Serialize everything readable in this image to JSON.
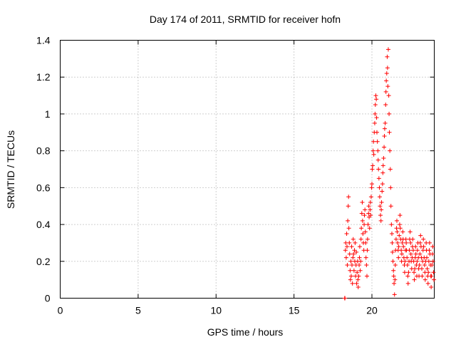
{
  "chart_data": {
    "type": "scatter",
    "title": "Day 174 of 2011, SRMTID for receiver hofn",
    "xlabel": "GPS time / hours",
    "ylabel": "SRMTID / TECUs",
    "xlim": [
      0,
      24
    ],
    "ylim": [
      0,
      1.4
    ],
    "xticks": [
      0,
      5,
      10,
      15,
      20
    ],
    "xtick_labels": [
      "0",
      "5",
      "10",
      "15",
      "20"
    ],
    "yticks": [
      0,
      0.2,
      0.4,
      0.6,
      0.8,
      1.0,
      1.2,
      1.4
    ],
    "ytick_labels": [
      "0",
      "0.2",
      "0.4",
      "0.6",
      "0.8",
      "1",
      "1.2",
      "1.4"
    ],
    "grid": true,
    "marker": "+",
    "color": "#ff0000",
    "series": [
      {
        "name": "SRMTID",
        "points": [
          [
            18.25,
            0.0
          ],
          [
            18.27,
            0.0
          ],
          [
            18.3,
            0.26
          ],
          [
            18.32,
            0.3
          ],
          [
            18.35,
            0.22
          ],
          [
            18.38,
            0.35
          ],
          [
            18.4,
            0.28
          ],
          [
            18.42,
            0.18
          ],
          [
            18.45,
            0.42
          ],
          [
            18.48,
            0.5
          ],
          [
            18.5,
            0.55
          ],
          [
            18.52,
            0.38
          ],
          [
            18.55,
            0.3
          ],
          [
            18.57,
            0.24
          ],
          [
            18.6,
            0.15
          ],
          [
            18.62,
            0.1
          ],
          [
            18.65,
            0.2
          ],
          [
            18.67,
            0.12
          ],
          [
            18.7,
            0.28
          ],
          [
            18.72,
            0.18
          ],
          [
            18.75,
            0.08
          ],
          [
            18.78,
            0.22
          ],
          [
            18.8,
            0.32
          ],
          [
            18.82,
            0.24
          ],
          [
            18.85,
            0.15
          ],
          [
            18.88,
            0.26
          ],
          [
            18.9,
            0.2
          ],
          [
            18.92,
            0.3
          ],
          [
            18.95,
            0.12
          ],
          [
            18.98,
            0.18
          ],
          [
            19.0,
            0.25
          ],
          [
            19.02,
            0.08
          ],
          [
            19.05,
            0.14
          ],
          [
            19.08,
            0.2
          ],
          [
            19.1,
            0.1
          ],
          [
            19.12,
            0.06
          ],
          [
            19.15,
            0.12
          ],
          [
            19.18,
            0.18
          ],
          [
            19.2,
            0.22
          ],
          [
            19.22,
            0.28
          ],
          [
            19.25,
            0.15
          ],
          [
            19.28,
            0.2
          ],
          [
            19.3,
            0.32
          ],
          [
            19.32,
            0.38
          ],
          [
            19.35,
            0.46
          ],
          [
            19.38,
            0.52
          ],
          [
            19.4,
            0.42
          ],
          [
            19.42,
            0.35
          ],
          [
            19.45,
            0.3
          ],
          [
            19.48,
            0.26
          ],
          [
            19.5,
            0.4
          ],
          [
            19.52,
            0.45
          ],
          [
            19.55,
            0.48
          ],
          [
            19.58,
            0.36
          ],
          [
            19.6,
            0.3
          ],
          [
            19.62,
            0.22
          ],
          [
            19.65,
            0.18
          ],
          [
            19.68,
            0.12
          ],
          [
            19.7,
            0.26
          ],
          [
            19.72,
            0.32
          ],
          [
            19.75,
            0.4
          ],
          [
            19.78,
            0.46
          ],
          [
            19.8,
            0.5
          ],
          [
            19.82,
            0.44
          ],
          [
            19.85,
            0.38
          ],
          [
            19.88,
            0.48
          ],
          [
            19.9,
            0.52
          ],
          [
            19.92,
            0.45
          ],
          [
            19.95,
            0.55
          ],
          [
            19.98,
            0.6
          ],
          [
            20.0,
            0.62
          ],
          [
            20.02,
            0.7
          ],
          [
            20.05,
            0.72
          ],
          [
            20.08,
            0.8
          ],
          [
            20.1,
            0.85
          ],
          [
            20.12,
            0.78
          ],
          [
            20.15,
            0.9
          ],
          [
            20.18,
            0.95
          ],
          [
            20.2,
            1.0
          ],
          [
            20.22,
            1.05
          ],
          [
            20.25,
            1.1
          ],
          [
            20.28,
            1.08
          ],
          [
            20.3,
            0.98
          ],
          [
            20.32,
            0.9
          ],
          [
            20.35,
            0.85
          ],
          [
            20.38,
            0.8
          ],
          [
            20.4,
            0.75
          ],
          [
            20.42,
            0.7
          ],
          [
            20.45,
            0.65
          ],
          [
            20.48,
            0.6
          ],
          [
            20.5,
            0.55
          ],
          [
            20.52,
            0.5
          ],
          [
            20.55,
            0.45
          ],
          [
            20.58,
            0.42
          ],
          [
            20.6,
            0.48
          ],
          [
            20.62,
            0.52
          ],
          [
            20.65,
            0.58
          ],
          [
            20.68,
            0.62
          ],
          [
            20.7,
            0.68
          ],
          [
            20.72,
            0.72
          ],
          [
            20.75,
            0.76
          ],
          [
            20.78,
            0.82
          ],
          [
            20.8,
            0.88
          ],
          [
            20.82,
            0.92
          ],
          [
            20.85,
            0.95
          ],
          [
            20.88,
            1.05
          ],
          [
            20.9,
            1.12
          ],
          [
            20.92,
            1.18
          ],
          [
            20.95,
            1.22
          ],
          [
            20.98,
            1.31
          ],
          [
            21.0,
            1.25
          ],
          [
            21.02,
            1.15
          ],
          [
            21.05,
            1.35
          ],
          [
            21.08,
            1.1
          ],
          [
            21.1,
            1.0
          ],
          [
            21.12,
            0.9
          ],
          [
            21.15,
            0.8
          ],
          [
            21.18,
            0.7
          ],
          [
            21.2,
            0.6
          ],
          [
            21.22,
            0.5
          ],
          [
            21.25,
            0.4
          ],
          [
            21.28,
            0.35
          ],
          [
            21.3,
            0.3
          ],
          [
            21.32,
            0.25
          ],
          [
            21.35,
            0.2
          ],
          [
            21.38,
            0.15
          ],
          [
            21.4,
            0.12
          ],
          [
            21.42,
            0.08
          ],
          [
            21.45,
            0.02
          ],
          [
            21.48,
            0.1
          ],
          [
            21.5,
            0.18
          ],
          [
            21.52,
            0.26
          ],
          [
            21.55,
            0.32
          ],
          [
            21.58,
            0.38
          ],
          [
            21.6,
            0.42
          ],
          [
            21.62,
            0.36
          ],
          [
            21.65,
            0.3
          ],
          [
            21.68,
            0.26
          ],
          [
            21.7,
            0.22
          ],
          [
            21.72,
            0.28
          ],
          [
            21.75,
            0.34
          ],
          [
            21.78,
            0.4
          ],
          [
            21.8,
            0.45
          ],
          [
            21.82,
            0.38
          ],
          [
            21.85,
            0.32
          ],
          [
            21.88,
            0.26
          ],
          [
            21.9,
            0.2
          ],
          [
            21.92,
            0.24
          ],
          [
            21.95,
            0.3
          ],
          [
            21.98,
            0.36
          ],
          [
            22.0,
            0.32
          ],
          [
            22.02,
            0.28
          ],
          [
            22.05,
            0.22
          ],
          [
            22.08,
            0.18
          ],
          [
            22.1,
            0.14
          ],
          [
            22.12,
            0.2
          ],
          [
            22.15,
            0.26
          ],
          [
            22.18,
            0.32
          ],
          [
            22.2,
            0.3
          ],
          [
            22.22,
            0.26
          ],
          [
            22.25,
            0.22
          ],
          [
            22.28,
            0.18
          ],
          [
            22.3,
            0.12
          ],
          [
            22.32,
            0.08
          ],
          [
            22.35,
            0.14
          ],
          [
            22.38,
            0.2
          ],
          [
            22.4,
            0.26
          ],
          [
            22.42,
            0.32
          ],
          [
            22.45,
            0.36
          ],
          [
            22.48,
            0.3
          ],
          [
            22.5,
            0.24
          ],
          [
            22.52,
            0.2
          ],
          [
            22.55,
            0.16
          ],
          [
            22.58,
            0.22
          ],
          [
            22.6,
            0.28
          ],
          [
            22.62,
            0.32
          ],
          [
            22.65,
            0.26
          ],
          [
            22.68,
            0.2
          ],
          [
            22.7,
            0.14
          ],
          [
            22.72,
            0.1
          ],
          [
            22.75,
            0.16
          ],
          [
            22.78,
            0.22
          ],
          [
            22.8,
            0.28
          ],
          [
            22.82,
            0.24
          ],
          [
            22.85,
            0.18
          ],
          [
            22.88,
            0.12
          ],
          [
            22.9,
            0.2
          ],
          [
            22.92,
            0.26
          ],
          [
            22.95,
            0.3
          ],
          [
            22.98,
            0.22
          ],
          [
            23.0,
            0.16
          ],
          [
            23.02,
            0.12
          ],
          [
            23.05,
            0.18
          ],
          [
            23.08,
            0.24
          ],
          [
            23.1,
            0.3
          ],
          [
            23.12,
            0.34
          ],
          [
            23.15,
            0.28
          ],
          [
            23.18,
            0.22
          ],
          [
            23.2,
            0.16
          ],
          [
            23.22,
            0.12
          ],
          [
            23.25,
            0.2
          ],
          [
            23.28,
            0.26
          ],
          [
            23.3,
            0.32
          ],
          [
            23.32,
            0.28
          ],
          [
            23.35,
            0.22
          ],
          [
            23.38,
            0.18
          ],
          [
            23.4,
            0.14
          ],
          [
            23.42,
            0.1
          ],
          [
            23.45,
            0.2
          ],
          [
            23.48,
            0.3
          ],
          [
            23.5,
            0.26
          ],
          [
            23.52,
            0.22
          ],
          [
            23.55,
            0.16
          ],
          [
            23.58,
            0.12
          ],
          [
            23.6,
            0.08
          ],
          [
            23.62,
            0.14
          ],
          [
            23.65,
            0.2
          ],
          [
            23.68,
            0.26
          ],
          [
            23.7,
            0.3
          ],
          [
            23.72,
            0.24
          ],
          [
            23.75,
            0.18
          ],
          [
            23.78,
            0.12
          ],
          [
            23.8,
            0.06
          ],
          [
            23.82,
            0.12
          ],
          [
            23.85,
            0.18
          ],
          [
            23.88,
            0.24
          ],
          [
            23.9,
            0.28
          ],
          [
            23.92,
            0.2
          ],
          [
            23.95,
            0.14
          ],
          [
            23.98,
            0.1
          ]
        ]
      }
    ]
  }
}
